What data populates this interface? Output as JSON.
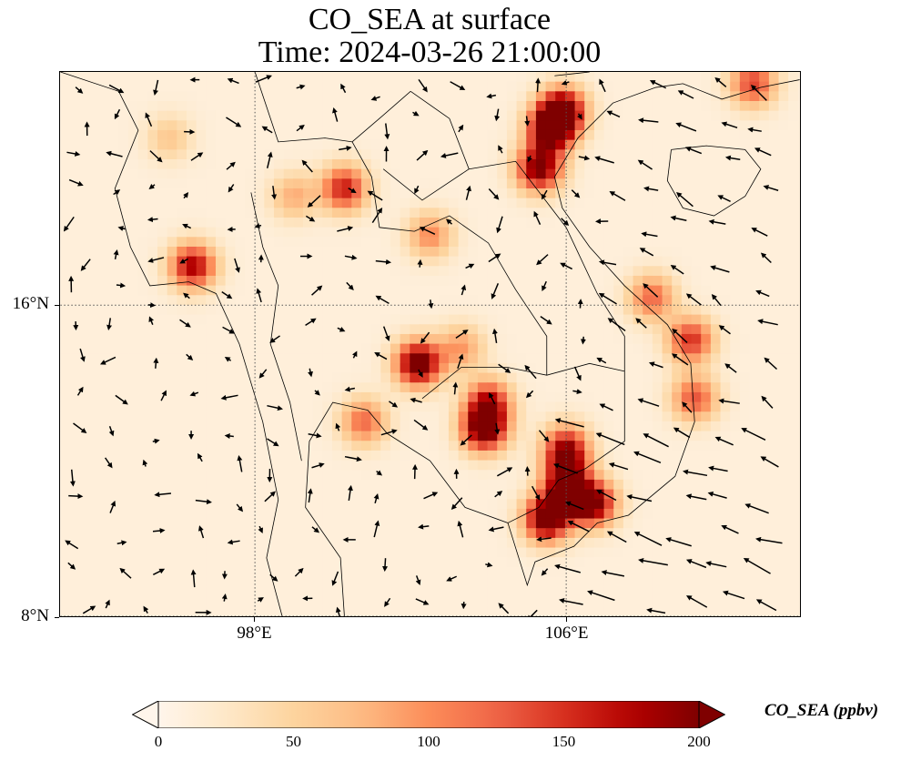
{
  "title": {
    "line1": "CO_SEA at surface",
    "line2": "Time: 2024-03-26 21:00:00"
  },
  "map": {
    "projection": "PlateCarree",
    "extent_lon": [
      93.0,
      112.0
    ],
    "extent_lat": [
      8.0,
      22.0
    ],
    "gridlines": "dotted",
    "lat_ticks": [
      {
        "value": 16,
        "label": "16°N"
      },
      {
        "value": 8,
        "label": "8°N"
      }
    ],
    "lon_ticks": [
      {
        "value": 98,
        "label": "98°E"
      },
      {
        "value": 106,
        "label": "106°E"
      }
    ],
    "field": "CO_SEA",
    "overlay": "wind vectors (quiver)",
    "hotspots": [
      {
        "lon": 105.9,
        "lat": 21.0,
        "value": 210
      },
      {
        "lon": 105.6,
        "lat": 20.5,
        "value": 200
      },
      {
        "lon": 105.3,
        "lat": 19.5,
        "value": 190
      },
      {
        "lon": 103.9,
        "lat": 12.8,
        "value": 200
      },
      {
        "lon": 102.2,
        "lat": 14.5,
        "value": 210
      },
      {
        "lon": 104.0,
        "lat": 13.5,
        "value": 150
      },
      {
        "lon": 105.5,
        "lat": 10.5,
        "value": 210
      },
      {
        "lon": 106.7,
        "lat": 10.9,
        "value": 190
      },
      {
        "lon": 106.0,
        "lat": 11.2,
        "value": 170
      },
      {
        "lon": 100.3,
        "lat": 19.0,
        "value": 150
      },
      {
        "lon": 96.4,
        "lat": 17.0,
        "value": 170
      },
      {
        "lon": 102.5,
        "lat": 17.8,
        "value": 90
      },
      {
        "lon": 109.2,
        "lat": 15.1,
        "value": 140
      },
      {
        "lon": 108.2,
        "lat": 16.2,
        "value": 110
      },
      {
        "lon": 109.3,
        "lat": 13.6,
        "value": 120
      },
      {
        "lon": 110.8,
        "lat": 21.7,
        "value": 130
      },
      {
        "lon": 103.3,
        "lat": 14.9,
        "value": 80
      },
      {
        "lon": 100.8,
        "lat": 13.0,
        "value": 110
      },
      {
        "lon": 106.0,
        "lat": 11.9,
        "value": 120
      },
      {
        "lon": 106.0,
        "lat": 12.4,
        "value": 120
      },
      {
        "lon": 95.8,
        "lat": 20.3,
        "value": 50
      },
      {
        "lon": 99.0,
        "lat": 18.8,
        "value": 70
      }
    ],
    "background_value": 12
  },
  "colorbar": {
    "cmap": "OrRd",
    "min": 0,
    "max": 200,
    "extend": "both",
    "ticks": [
      0,
      50,
      100,
      150,
      200
    ],
    "label": "CO_SEA (ppbv)"
  }
}
